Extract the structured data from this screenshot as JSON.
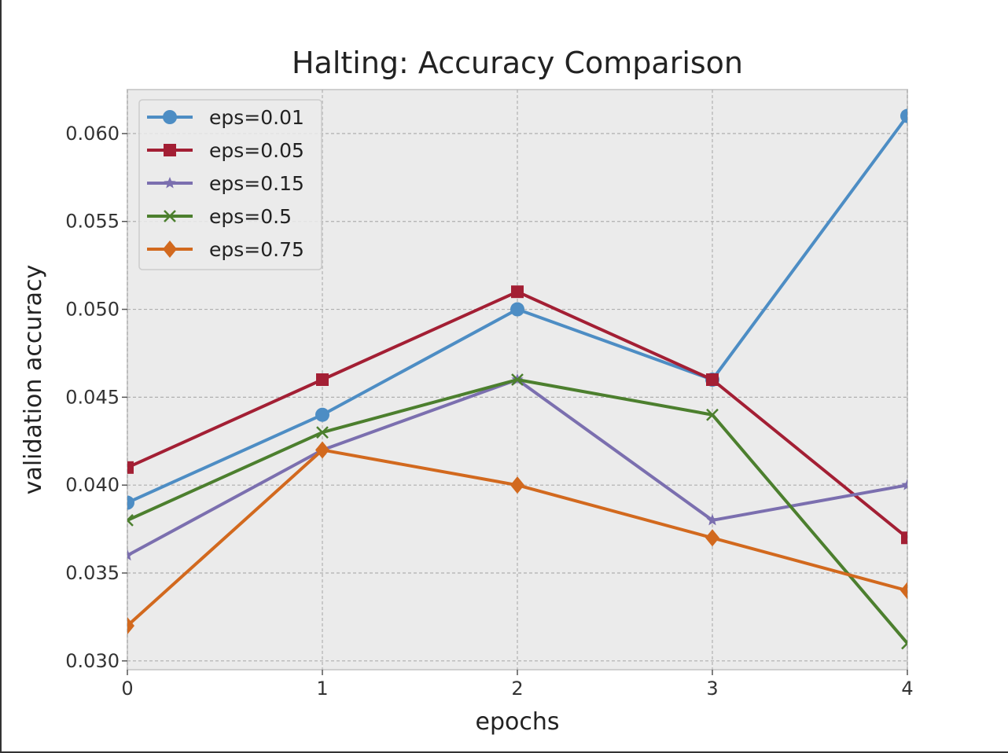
{
  "chart_data": {
    "type": "line",
    "title": "Halting: Accuracy Comparison",
    "xlabel": "epochs",
    "ylabel": "validation accuracy",
    "x": [
      0,
      1,
      2,
      3,
      4
    ],
    "xlim": [
      0,
      4
    ],
    "ylim": [
      0.0295,
      0.0625
    ],
    "xticks": [
      "0",
      "1",
      "2",
      "3",
      "4"
    ],
    "yticks": [
      0.03,
      0.035,
      0.04,
      0.045,
      0.05,
      0.055,
      0.06
    ],
    "ytick_labels": [
      "0.030",
      "0.035",
      "0.040",
      "0.045",
      "0.050",
      "0.055",
      "0.060"
    ],
    "grid": true,
    "legend_position": "top-left",
    "series": [
      {
        "name": "eps=0.01",
        "color": "#4d8dc4",
        "marker": "circle",
        "values": [
          0.039,
          0.044,
          0.05,
          0.046,
          0.061
        ]
      },
      {
        "name": "eps=0.05",
        "color": "#a31f34",
        "marker": "square",
        "values": [
          0.041,
          0.046,
          0.051,
          0.046,
          0.037
        ]
      },
      {
        "name": "eps=0.15",
        "color": "#7b6faf",
        "marker": "star",
        "values": [
          0.036,
          0.042,
          0.046,
          0.038,
          0.04
        ]
      },
      {
        "name": "eps=0.5",
        "color": "#4c7f2e",
        "marker": "x",
        "values": [
          0.038,
          0.043,
          0.046,
          0.044,
          0.031
        ]
      },
      {
        "name": "eps=0.75",
        "color": "#d2691e",
        "marker": "diamond",
        "values": [
          0.032,
          0.042,
          0.04,
          0.037,
          0.034
        ]
      }
    ]
  }
}
